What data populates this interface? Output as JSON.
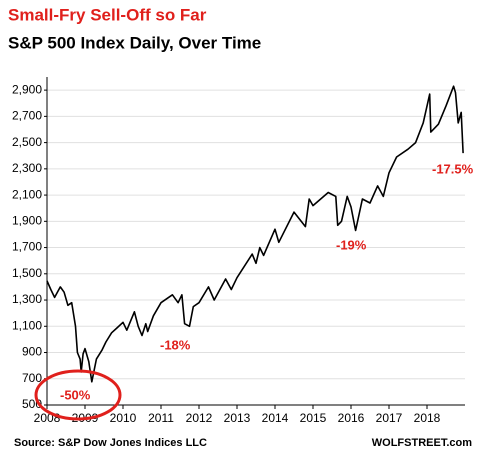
{
  "chart_data": {
    "type": "line",
    "title": "Small-Fry Sell-Off so Far",
    "subtitle": "S&P 500 Index Daily, Over Time",
    "source": "Source: S&P Dow Jones Indices LLC",
    "brand": "WOLFSTREET.com",
    "annotations": [
      "-50%",
      "-18%",
      "-19%",
      "-17.5%"
    ],
    "color": "#000000",
    "x": [
      2008.0,
      2008.1,
      2008.2,
      2008.35,
      2008.45,
      2008.55,
      2008.65,
      2008.75,
      2008.8,
      2008.87,
      2008.9,
      2008.95,
      2009.0,
      2009.1,
      2009.18,
      2009.3,
      2009.45,
      2009.55,
      2009.7,
      2009.85,
      2010.0,
      2010.1,
      2010.3,
      2010.4,
      2010.5,
      2010.6,
      2010.65,
      2010.8,
      2011.0,
      2011.3,
      2011.45,
      2011.55,
      2011.62,
      2011.75,
      2011.85,
      2012.0,
      2012.25,
      2012.4,
      2012.7,
      2012.85,
      2013.0,
      2013.4,
      2013.5,
      2013.6,
      2013.7,
      2014.0,
      2014.1,
      2014.5,
      2014.8,
      2014.9,
      2015.0,
      2015.4,
      2015.6,
      2015.65,
      2015.75,
      2015.9,
      2016.0,
      2016.12,
      2016.3,
      2016.5,
      2016.7,
      2016.85,
      2017.0,
      2017.2,
      2017.5,
      2017.7,
      2017.9,
      2018.07,
      2018.1,
      2018.3,
      2018.5,
      2018.7,
      2018.75,
      2018.82,
      2018.9,
      2018.95
    ],
    "values": [
      1447,
      1380,
      1320,
      1400,
      1360,
      1260,
      1280,
      1100,
      900,
      850,
      752,
      890,
      930,
      830,
      677,
      850,
      920,
      980,
      1050,
      1090,
      1130,
      1070,
      1210,
      1100,
      1030,
      1120,
      1060,
      1180,
      1280,
      1340,
      1280,
      1340,
      1120,
      1100,
      1250,
      1280,
      1400,
      1300,
      1460,
      1380,
      1470,
      1650,
      1580,
      1700,
      1640,
      1840,
      1740,
      1970,
      1860,
      2070,
      2020,
      2120,
      2090,
      1870,
      1900,
      2090,
      2010,
      1830,
      2070,
      2040,
      2170,
      2090,
      2270,
      2390,
      2450,
      2500,
      2650,
      2870,
      2580,
      2640,
      2780,
      2930,
      2880,
      2650,
      2730,
      2420
    ],
    "xlim": [
      2008,
      2019
    ],
    "xticks": [
      2008,
      2009,
      2010,
      2011,
      2012,
      2013,
      2014,
      2015,
      2016,
      2017,
      2018
    ],
    "ylim": [
      500,
      3000
    ],
    "yticks": [
      {
        "value": 500,
        "label": "500"
      },
      {
        "value": 700,
        "label": "700"
      },
      {
        "value": 900,
        "label": "900"
      },
      {
        "value": 1100,
        "label": "1,100"
      },
      {
        "value": 1300,
        "label": "1,300"
      },
      {
        "value": 1500,
        "label": "1,500"
      },
      {
        "value": 1700,
        "label": "1,700"
      },
      {
        "value": 1900,
        "label": "1,900"
      },
      {
        "value": 2100,
        "label": "2,100"
      },
      {
        "value": 2300,
        "label": "2,300"
      },
      {
        "value": 2500,
        "label": "2,500"
      },
      {
        "value": 2700,
        "label": "2,700"
      },
      {
        "value": 2900,
        "label": "2,900"
      }
    ],
    "grid": true
  }
}
